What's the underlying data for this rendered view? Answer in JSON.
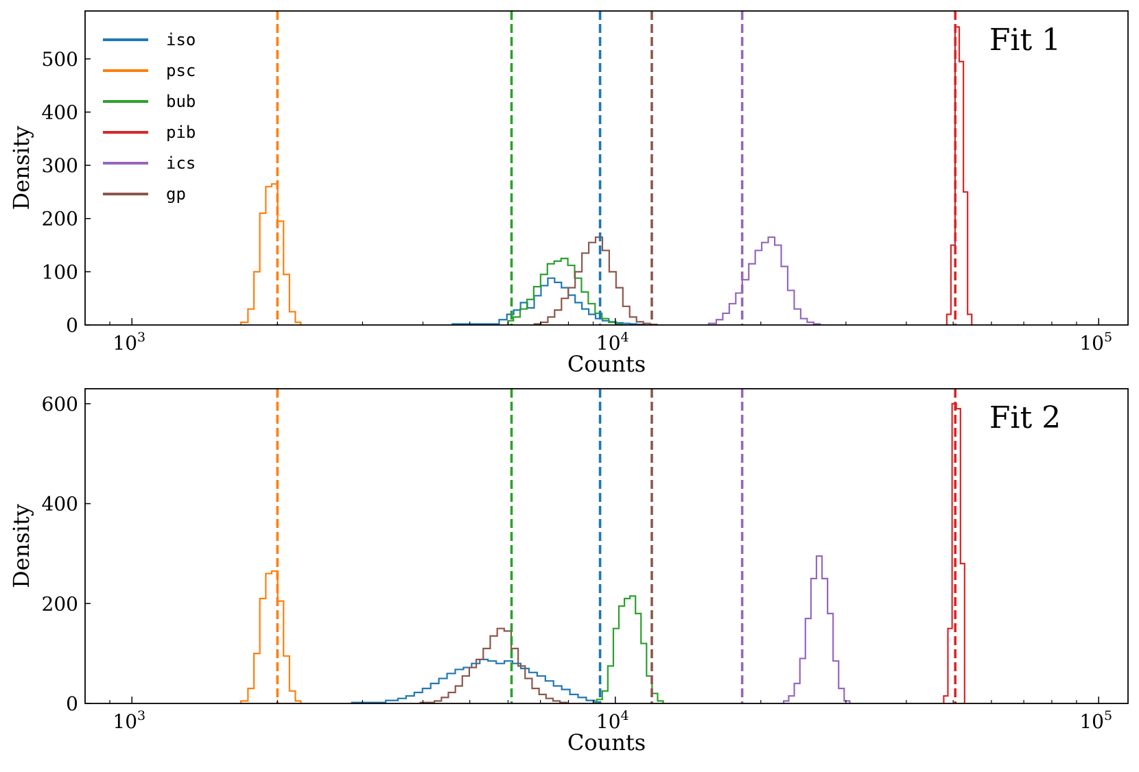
{
  "chart_data": [
    {
      "type": "histogram",
      "title": "Fit 1",
      "xlabel": "Counts",
      "ylabel": "Density",
      "xscale": "log",
      "xlim": [
        800,
        115000
      ],
      "ylim": [
        0,
        590
      ],
      "yticks": [
        0,
        100,
        200,
        300,
        400,
        500
      ],
      "xticks": [
        {
          "value": 1000,
          "base": "10",
          "exp": "3"
        },
        {
          "value": 10000,
          "base": "10",
          "exp": "4"
        },
        {
          "value": 100000,
          "base": "10",
          "exp": "5"
        }
      ],
      "legend": {
        "position": "top-left",
        "entries": [
          "iso",
          "psc",
          "bub",
          "pib",
          "ics",
          "gp"
        ]
      },
      "vlines": [
        {
          "series": "psc",
          "x": 2000
        },
        {
          "series": "bub",
          "x": 6100
        },
        {
          "series": "iso",
          "x": 9300
        },
        {
          "series": "gp",
          "x": 11900
        },
        {
          "series": "ics",
          "x": 18300
        },
        {
          "series": "pib",
          "x": 50500
        }
      ],
      "series": [
        {
          "name": "iso",
          "color": "#1f77b4",
          "edges": [
            4600,
            5750,
            5967,
            6164,
            6367,
            6578,
            6795,
            7019,
            7251,
            7490,
            7738,
            7993,
            8257,
            8530,
            8812,
            9103,
            9404,
            9714,
            10035,
            10367,
            10709,
            11063,
            11500
          ],
          "values": [
            2,
            10,
            20,
            28,
            42,
            32,
            55,
            74,
            88,
            80,
            70,
            56,
            42,
            30,
            20,
            12,
            8,
            6,
            4,
            3,
            2,
            1
          ]
        },
        {
          "name": "psc",
          "color": "#ff7f0e",
          "edges": [
            1680,
            1738,
            1788,
            1839,
            1892,
            1946,
            2002,
            2059,
            2118,
            2178,
            2235
          ],
          "values": [
            5,
            30,
            100,
            210,
            260,
            265,
            195,
            95,
            25,
            5
          ]
        },
        {
          "name": "bub",
          "color": "#2ca02c",
          "edges": [
            6000,
            6154,
            6355,
            6565,
            6781,
            7005,
            7236,
            7475,
            7722,
            7976,
            8239,
            8511,
            8792,
            9082,
            9381,
            9690,
            10010,
            10340
          ],
          "values": [
            8,
            15,
            30,
            48,
            72,
            95,
            115,
            120,
            125,
            112,
            88,
            62,
            40,
            22,
            12,
            5,
            2
          ]
        },
        {
          "name": "pib",
          "color": "#d62728",
          "edges": [
            48500,
            49465,
            50457,
            51468,
            52500,
            53553,
            54627
          ],
          "values": [
            20,
            150,
            560,
            495,
            250,
            20
          ]
        },
        {
          "name": "ics",
          "color": "#9467bd",
          "edges": [
            15600,
            16177,
            16685,
            17210,
            17750,
            18308,
            18883,
            19476,
            20088,
            20719,
            21369,
            22041,
            22733,
            23447,
            24183,
            24943,
            25726,
            26535
          ],
          "values": [
            3,
            10,
            22,
            40,
            60,
            85,
            115,
            140,
            155,
            165,
            150,
            110,
            65,
            30,
            12,
            5,
            2
          ]
        },
        {
          "name": "gp",
          "color": "#8c564b",
          "edges": [
            6800,
            7019,
            7251,
            7490,
            7738,
            7993,
            8257,
            8530,
            8812,
            9103,
            9404,
            9714,
            10035,
            10367,
            10709,
            11063,
            11428,
            11806,
            12200
          ],
          "values": [
            2,
            5,
            15,
            28,
            50,
            70,
            100,
            135,
            155,
            165,
            140,
            100,
            70,
            35,
            15,
            6,
            3,
            1
          ]
        }
      ]
    },
    {
      "type": "histogram",
      "title": "Fit 2",
      "xlabel": "Counts",
      "ylabel": "Density",
      "xscale": "log",
      "xlim": [
        800,
        115000
      ],
      "ylim": [
        0,
        630
      ],
      "yticks": [
        0,
        200,
        400,
        600
      ],
      "xticks": [
        {
          "value": 1000,
          "base": "10",
          "exp": "3"
        },
        {
          "value": 10000,
          "base": "10",
          "exp": "4"
        },
        {
          "value": 100000,
          "base": "10",
          "exp": "5"
        }
      ],
      "vlines": [
        {
          "series": "psc",
          "x": 2000
        },
        {
          "series": "bub",
          "x": 6100
        },
        {
          "series": "iso",
          "x": 9300
        },
        {
          "series": "gp",
          "x": 11900
        },
        {
          "series": "ics",
          "x": 18300
        },
        {
          "series": "pib",
          "x": 50500
        }
      ],
      "series": [
        {
          "name": "iso",
          "color": "#1f77b4",
          "edges": [
            2850,
            3350,
            3550,
            3691,
            3838,
            3991,
            4150,
            4315,
            4487,
            4665,
            4851,
            5044,
            5245,
            5453,
            5670,
            5896,
            6130,
            6374,
            6628,
            6892,
            7166,
            7451,
            7747,
            8055,
            8376,
            8709,
            9055,
            9300
          ],
          "values": [
            2,
            6,
            10,
            15,
            22,
            30,
            40,
            50,
            60,
            68,
            72,
            80,
            88,
            85,
            80,
            85,
            80,
            70,
            62,
            55,
            45,
            35,
            28,
            18,
            12,
            6,
            3
          ]
        },
        {
          "name": "psc",
          "color": "#ff7f0e",
          "edges": [
            1680,
            1738,
            1788,
            1839,
            1892,
            1946,
            2002,
            2059,
            2118,
            2178,
            2235
          ],
          "values": [
            5,
            30,
            100,
            210,
            260,
            265,
            205,
            95,
            25,
            5
          ]
        },
        {
          "name": "bub",
          "color": "#2ca02c",
          "edges": [
            9150,
            9398,
            9650,
            9908,
            10172,
            10444,
            10723,
            11009,
            11303,
            11605,
            11914,
            12233,
            12560
          ],
          "values": [
            8,
            25,
            75,
            150,
            195,
            210,
            215,
            180,
            120,
            55,
            20,
            5
          ]
        },
        {
          "name": "pib",
          "color": "#d62728",
          "edges": [
            47800,
            48763,
            49747,
            50750,
            51774,
            52800
          ],
          "values": [
            15,
            150,
            600,
            590,
            280
          ]
        },
        {
          "name": "ics",
          "color": "#9467bd",
          "edges": [
            22300,
            22844,
            23456,
            24091,
            24734,
            25394,
            26072,
            26770,
            27486,
            28221,
            28975,
            29750,
            30550
          ],
          "values": [
            5,
            15,
            40,
            90,
            170,
            250,
            295,
            250,
            180,
            85,
            30,
            5
          ]
        },
        {
          "name": "gp",
          "color": "#8c564b",
          "edges": [
            3950,
            4225,
            4368,
            4515,
            4668,
            4825,
            4988,
            5157,
            5331,
            5511,
            5698,
            5890,
            6089,
            6295,
            6507,
            6727,
            6955,
            7190,
            7433,
            7684,
            7944
          ],
          "values": [
            2,
            5,
            12,
            22,
            35,
            55,
            72,
            88,
            110,
            135,
            150,
            145,
            110,
            75,
            50,
            30,
            18,
            10,
            5,
            2
          ]
        }
      ]
    }
  ]
}
